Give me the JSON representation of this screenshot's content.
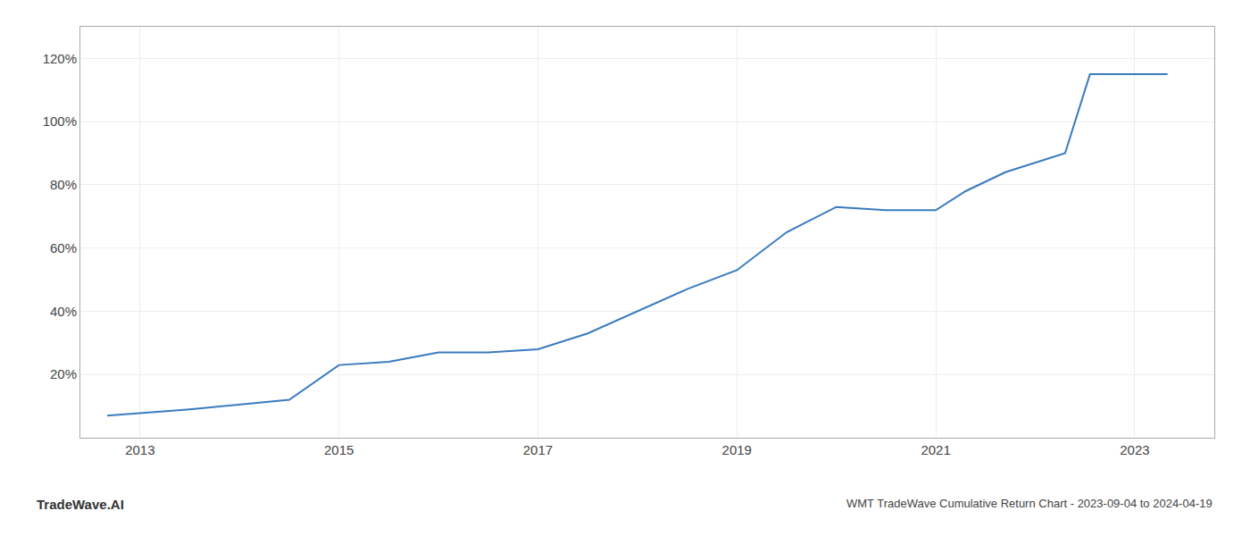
{
  "chart_data": {
    "type": "line",
    "title": "WMT TradeWave Cumulative Return Chart - 2023-09-04 to 2024-04-19",
    "annotations": [
      "TradeWave.AI"
    ],
    "x": [
      2012.67,
      2013.5,
      2014.5,
      2015.0,
      2015.5,
      2016.0,
      2016.5,
      2017.0,
      2017.5,
      2018.0,
      2018.5,
      2019.0,
      2019.5,
      2020.0,
      2020.5,
      2021.0,
      2021.3,
      2021.7,
      2022.0,
      2022.3,
      2022.55,
      2023.0,
      2023.33
    ],
    "values": [
      7,
      9,
      12,
      23,
      24,
      27,
      27,
      28,
      33,
      40,
      47,
      53,
      65,
      73,
      72,
      72,
      78,
      84,
      87,
      90,
      115,
      115,
      115
    ],
    "color": "#3a7abf",
    "xlim": [
      2012.4,
      2023.8
    ],
    "xticks": [
      2013,
      2015,
      2017,
      2019,
      2021,
      2023
    ],
    "ylim": [
      0,
      130
    ],
    "yticks": [
      {
        "value": 20,
        "label": "20%"
      },
      {
        "value": 40,
        "label": "40%"
      },
      {
        "value": 60,
        "label": "60%"
      },
      {
        "value": 80,
        "label": "80%"
      },
      {
        "value": 100,
        "label": "100%"
      },
      {
        "value": 120,
        "label": "120%"
      }
    ],
    "grid": true
  }
}
